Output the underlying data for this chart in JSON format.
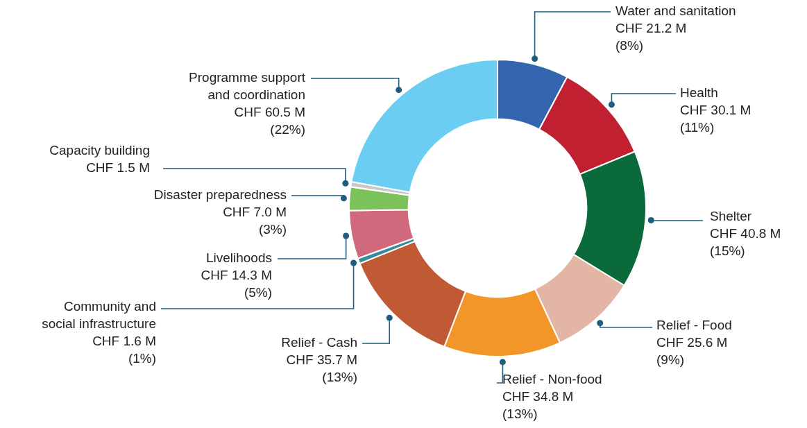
{
  "chart_data": {
    "type": "donut",
    "categories": [
      "Water and sanitation",
      "Health",
      "Shelter",
      "Relief - Food",
      "Relief - Non-food",
      "Relief - Cash",
      "Community and\nsocial infrastructure",
      "Livelihoods",
      "Disaster preparedness",
      "Capacity building",
      "Programme support\nand coordination"
    ],
    "values": [
      21.2,
      30.1,
      40.8,
      25.6,
      34.8,
      35.7,
      1.6,
      14.3,
      7.0,
      1.5,
      60.5
    ],
    "colors": [
      "#3466b0",
      "#c0202f",
      "#0b6a3a",
      "#e2b5a5",
      "#f3962a",
      "#c05a35",
      "#3a8c9c",
      "#d0697b",
      "#7cc25a",
      "#c8c8c8",
      "#6ccdf2"
    ],
    "value_labels": [
      "CHF 21.2 M\n(8%)",
      "CHF 30.1 M\n(11%)",
      "CHF 40.8 M\n(15%)",
      "CHF 25.6 M\n(9%)",
      "CHF 34.8 M\n(13%)",
      "CHF 35.7 M\n(13%)",
      "CHF 1.6 M\n(1%)",
      "CHF 14.3 M\n(5%)",
      "CHF 7.0 M\n(3%)",
      "CHF 1.5 M",
      "CHF 60.5 M\n(22%)"
    ],
    "legend": false
  }
}
